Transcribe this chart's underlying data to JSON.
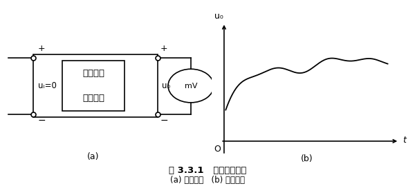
{
  "bg_color": "#ffffff",
  "fig_width": 6.0,
  "fig_height": 2.7,
  "dpi": 100,
  "circuit": {
    "label_line1": "直接耦合",
    "label_line2": "放大电路",
    "ui_label": "uᵢ=0",
    "uo_label": "u₀",
    "mv_label": "mV",
    "sub_label_a": "(a)"
  },
  "graph": {
    "sub_label_b": "(b)",
    "x_label": "t",
    "y_label": "u₀",
    "origin_label": "O"
  },
  "caption_title": "图 3.3.1   零点漂移现象",
  "caption_sub": "(a) 测试电路   (b) 测试结果"
}
